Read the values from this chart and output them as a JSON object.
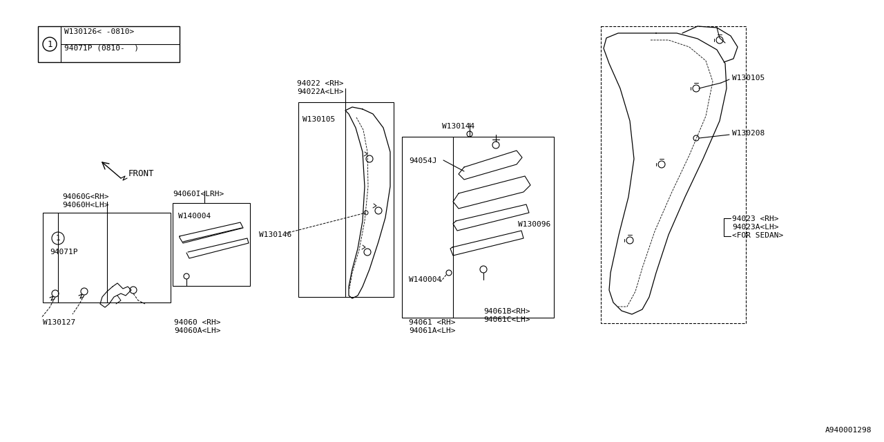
{
  "bg_color": "#ffffff",
  "watermark": "A940001298",
  "labels": {
    "leg_line1": "W130126< -0810>",
    "leg_line2": "94071P (0810-  )",
    "front": "FRONT",
    "p94060G": "94060G<RH>",
    "p94060H": "94060H<LH>",
    "p94060I": "94060I<LRH>",
    "pW140004a": "W140004",
    "p94071P": "94071P",
    "pW130127": "W130127",
    "p94060": "94060 <RH>",
    "p94060A": "94060A<LH>",
    "p94022": "94022 <RH>",
    "p94022A": "94022A<LH>",
    "pW130105a": "W130105",
    "pW130146": "W130146",
    "p94054J": "94054J",
    "pW130144": "W130144",
    "pW130096": "W130096",
    "pW140004b": "W140004",
    "p94061": "94061 <RH>",
    "p94061A": "94061A<LH>",
    "p94061B": "94061B<RH>",
    "p94061C": "94061C<LH>",
    "p94023": "94023 <RH>",
    "p94023A": "94023A<LH>",
    "pForSedan": "<FOR SEDAN>",
    "pW130105b": "W130105",
    "pW130208": "W130208"
  }
}
